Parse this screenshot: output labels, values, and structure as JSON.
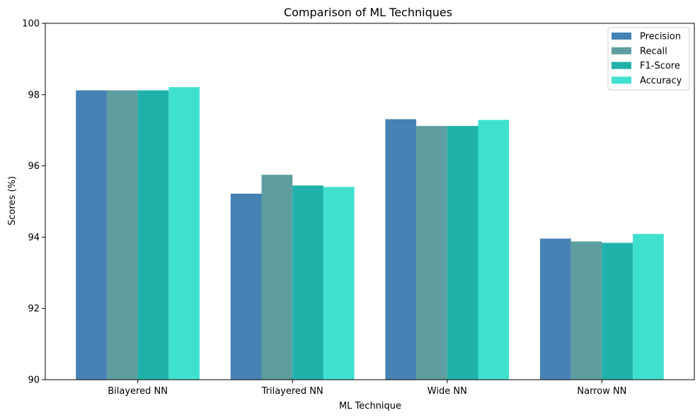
{
  "chart_data": {
    "type": "bar",
    "title": "Comparison of ML Techniques",
    "xlabel": "ML Technique",
    "ylabel": "Scores (%)",
    "categories": [
      "Bilayered NN",
      "Trilayered NN",
      "Wide NN",
      "Narrow NN"
    ],
    "ylim": [
      90,
      100
    ],
    "yticks": [
      90,
      92,
      94,
      96,
      98,
      100
    ],
    "grid": false,
    "legend_position": "top-right",
    "series": [
      {
        "name": "Precision",
        "color": "#4682b4",
        "values": [
          98.12,
          95.22,
          97.31,
          93.96
        ]
      },
      {
        "name": "Recall",
        "color": "#5f9ea0",
        "values": [
          98.12,
          95.75,
          97.12,
          93.88
        ]
      },
      {
        "name": "F1-Score",
        "color": "#20b2aa",
        "values": [
          98.12,
          95.45,
          97.12,
          93.84
        ]
      },
      {
        "name": "Accuracy",
        "color": "#40e0d0",
        "values": [
          98.21,
          95.41,
          97.29,
          94.09
        ]
      }
    ]
  }
}
